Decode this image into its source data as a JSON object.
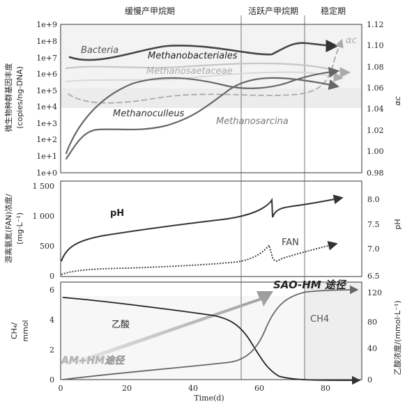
{
  "chart_data": {
    "type": "line",
    "phases": [
      "缓慢产甲烷期",
      "活跃产甲烷期",
      "稳定期"
    ],
    "xlabel": "Time(d)",
    "x_ticks": [
      "0",
      "20",
      "40",
      "60",
      "80"
    ],
    "xlim": [
      0,
      90
    ],
    "panels": [
      {
        "left_label": "微生物种群基因丰度",
        "left_unit": "(copies/ng-DNA)",
        "left_scale": "log",
        "left_ticks": [
          "1e+0",
          "1e+1",
          "1e+2",
          "1e+3",
          "1e+4",
          "1e+5",
          "1e+6",
          "1e+7",
          "1e+8",
          "1e+9"
        ],
        "right_label": "αc",
        "right_ticks": [
          "0.98",
          "1.00",
          "1.02",
          "1.04",
          "1.06",
          "1.08",
          "1.10",
          "1.12"
        ],
        "series": [
          {
            "name": "Bacteria",
            "x": [
              3,
              20,
              40,
              60,
              63,
              70,
              83
            ],
            "y": [
              15000000.0,
              10000000.0,
              50000000.0,
              12000000.0,
              15000000.0,
              80000000.0,
              50000000.0
            ]
          },
          {
            "name": "Methanobacteriales",
            "x": [
              3,
              40,
              70,
              85
            ],
            "y": [
              300000.0,
              2000000.0,
              1500000.0,
              1000000.0
            ]
          },
          {
            "name": "Methanosaetaceae",
            "x": [
              3,
              40,
              70,
              85
            ],
            "y": [
              2000000.0,
              2000000.0,
              2000000.0,
              1500000.0
            ]
          },
          {
            "name": "Methanoculleus",
            "x": [
              2,
              20,
              40,
              55,
              70,
              83
            ],
            "y": [
              10.0,
              30000.0,
              500000.0,
              100000.0,
              500000.0,
              1500000.0
            ]
          },
          {
            "name": "Methanosarcina",
            "x": [
              2,
              10,
              30,
              50,
              70,
              83
            ],
            "y": [
              5,
              500.0,
              800.0,
              100000.0,
              500000.0,
              300000.0
            ]
          },
          {
            "name": "αc",
            "x": [
              2,
              15,
              40,
              70,
              80,
              85
            ],
            "y": [
              1.05,
              1.045,
              1.055,
              1.058,
              1.08,
              1.105
            ]
          }
        ]
      },
      {
        "left_label": "游离氨氮(FAN)浓度/",
        "left_unit": "(mg·L⁻¹)",
        "left_ticks": [
          "0",
          "500",
          "1 000",
          "1 500"
        ],
        "right_label": "pH",
        "right_ticks": [
          "6.5",
          "7.0",
          "7.5",
          "8.0"
        ],
        "series": [
          {
            "name": "pH",
            "x": [
              0,
              10,
              30,
              50,
              63,
              64,
              70,
              85
            ],
            "y": [
              6.8,
              7.45,
              7.65,
              7.8,
              8.0,
              7.6,
              7.9,
              8.0
            ]
          },
          {
            "name": "FAN",
            "x": [
              0,
              20,
              50,
              63,
              64,
              70,
              85
            ],
            "y": [
              20,
              100,
              200,
              500,
              200,
              300,
              550
            ]
          }
        ]
      },
      {
        "left_label": "CH₄/",
        "left_unit": "mmol",
        "left_ticks": [
          "0",
          "2",
          "4",
          "6"
        ],
        "right_label": "乙酸浓度/(mmol·L⁻¹)",
        "right_ticks": [
          "0",
          "40",
          "80",
          "120"
        ],
        "series": [
          {
            "name": "乙酸",
            "x": [
              0,
              30,
              50,
              60,
              66,
              72,
              90
            ],
            "y": [
              113,
              104,
              85,
              55,
              15,
              0,
              0
            ]
          },
          {
            "name": "CH4",
            "x": [
              0,
              30,
              52,
              60,
              68,
              90
            ],
            "y": [
              0.1,
              0.8,
              1.5,
              3.5,
              5.8,
              6.1
            ]
          }
        ]
      }
    ],
    "annotations": [
      "AM+HM途径",
      "SAO-HM 途径"
    ]
  }
}
